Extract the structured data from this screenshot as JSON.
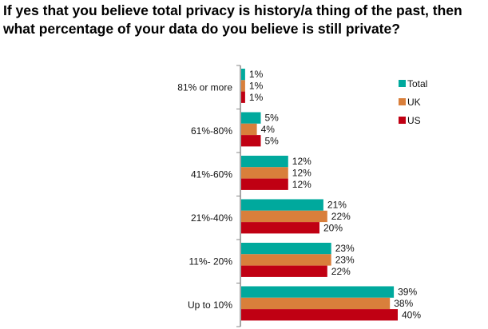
{
  "chart_data": {
    "type": "bar",
    "orientation": "horizontal",
    "title": "If yes that you believe total privacy is history/a thing of the past, then what percentage of your data do you believe is still private?",
    "categories": [
      "81% or more",
      "61%-80%",
      "41%-60%",
      "21%-40%",
      "11%- 20%",
      "Up to 10%"
    ],
    "series": [
      {
        "name": "Total",
        "color": "#00a99d",
        "values": [
          1,
          5,
          12,
          21,
          23,
          39
        ]
      },
      {
        "name": "UK",
        "color": "#d97f3b",
        "values": [
          1,
          4,
          12,
          22,
          23,
          38
        ]
      },
      {
        "name": "US",
        "color": "#c00013",
        "values": [
          1,
          5,
          12,
          20,
          22,
          40
        ]
      }
    ],
    "value_suffix": "%",
    "xlabel": "",
    "ylabel": "",
    "xlim": [
      0,
      40
    ],
    "grid": false,
    "legend": "top-right"
  }
}
